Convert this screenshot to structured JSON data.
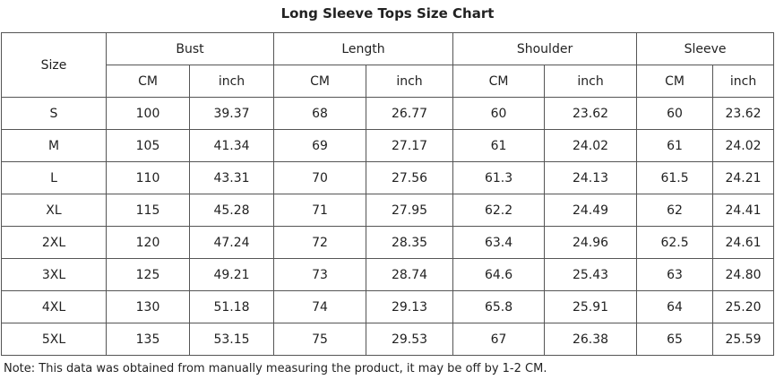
{
  "title": "Long Sleeve Tops Size Chart",
  "table": {
    "size_header": "Size",
    "groups": [
      "Bust",
      "Length",
      "Shoulder",
      "Sleeve"
    ],
    "units": [
      "CM",
      "inch",
      "CM",
      "inch",
      "CM",
      "inch",
      "CM",
      "inch"
    ],
    "rows": [
      [
        "S",
        "100",
        "39.37",
        "68",
        "26.77",
        "60",
        "23.62",
        "60",
        "23.62"
      ],
      [
        "M",
        "105",
        "41.34",
        "69",
        "27.17",
        "61",
        "24.02",
        "61",
        "24.02"
      ],
      [
        "L",
        "110",
        "43.31",
        "70",
        "27.56",
        "61.3",
        "24.13",
        "61.5",
        "24.21"
      ],
      [
        "XL",
        "115",
        "45.28",
        "71",
        "27.95",
        "62.2",
        "24.49",
        "62",
        "24.41"
      ],
      [
        "2XL",
        "120",
        "47.24",
        "72",
        "28.35",
        "63.4",
        "24.96",
        "62.5",
        "24.61"
      ],
      [
        "3XL",
        "125",
        "49.21",
        "73",
        "28.74",
        "64.6",
        "25.43",
        "63",
        "24.80"
      ],
      [
        "4XL",
        "130",
        "51.18",
        "74",
        "29.13",
        "65.8",
        "25.91",
        "64",
        "25.20"
      ],
      [
        "5XL",
        "135",
        "53.15",
        "75",
        "29.53",
        "67",
        "26.38",
        "65",
        "25.59"
      ]
    ]
  },
  "note": "Note: This data was obtained from manually measuring the product, it may be off by 1-2 CM."
}
